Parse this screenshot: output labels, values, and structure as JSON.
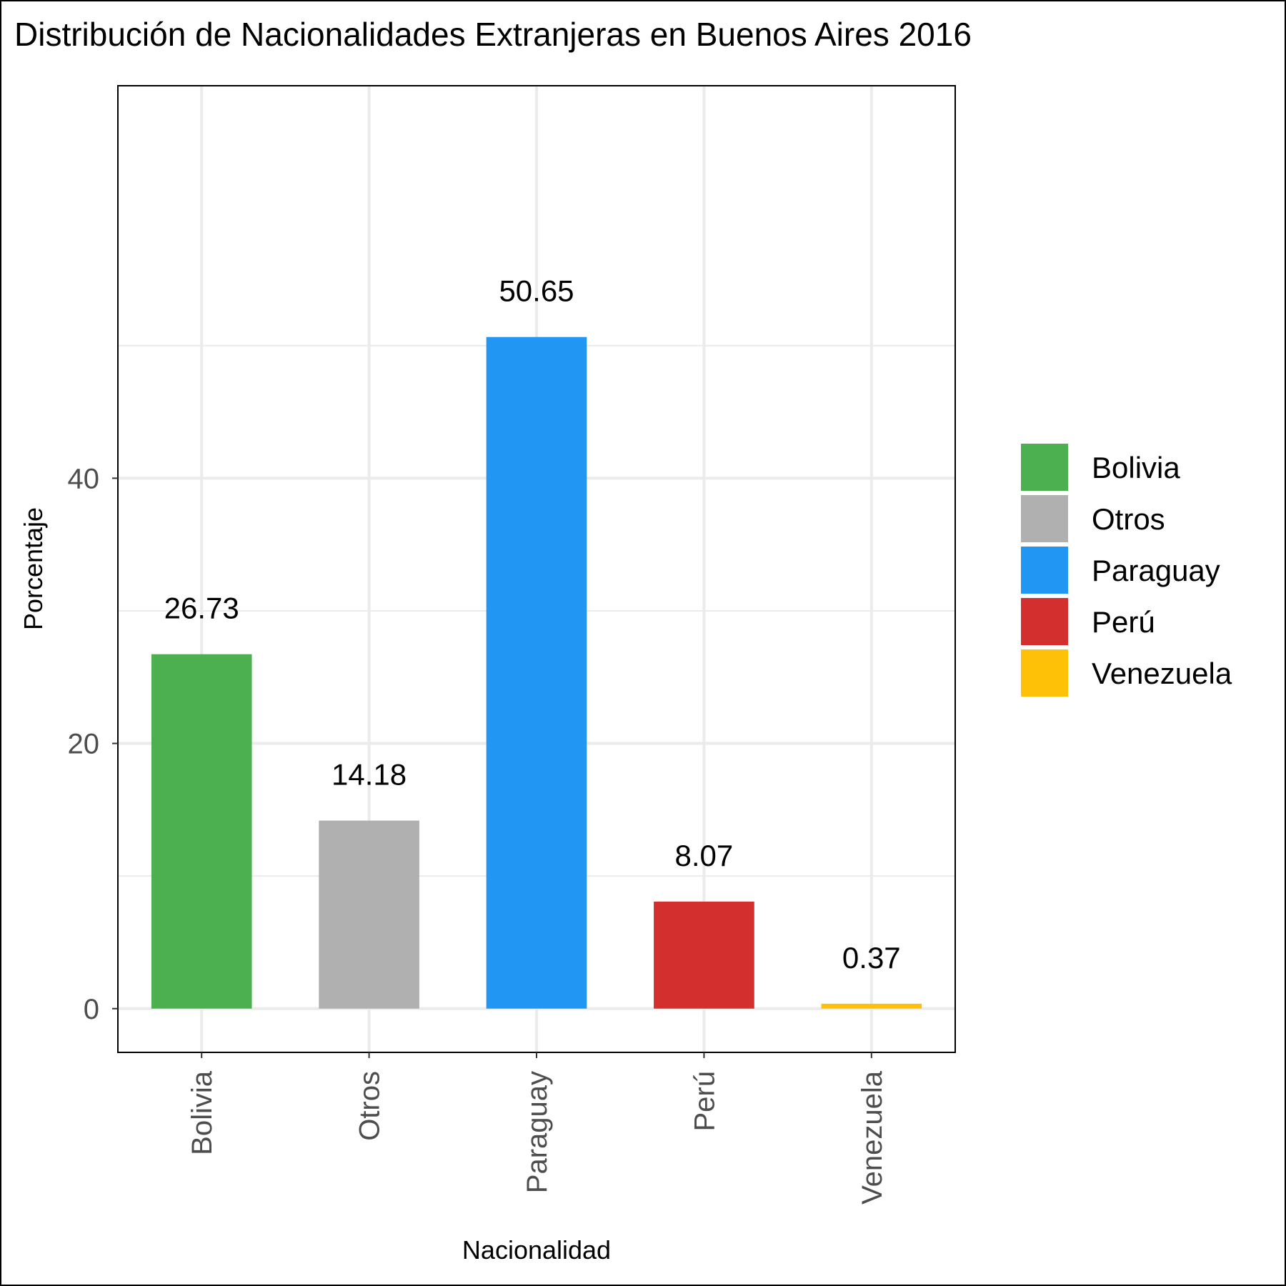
{
  "chart_data": {
    "type": "bar",
    "title": "Distribución de Nacionalidades Extranjeras en Buenos Aires 2016",
    "xlabel": "Nacionalidad",
    "ylabel": "Porcentaje",
    "categories": [
      "Bolivia",
      "Otros",
      "Paraguay",
      "Perú",
      "Venezuela"
    ],
    "values": [
      26.73,
      14.18,
      50.65,
      8.07,
      0.37
    ],
    "data_labels": [
      "26.73",
      "14.18",
      "50.65",
      "8.07",
      "0.37"
    ],
    "colors": [
      "#4caf50",
      "#b0b0b0",
      "#2196f3",
      "#d32f2f",
      "#ffc107"
    ],
    "ylim": [
      -3.3,
      69.6
    ],
    "yticks": [
      0,
      20,
      40
    ],
    "ytick_labels": [
      "0",
      "20",
      "40"
    ],
    "grid": true,
    "x_tick_rotation": "vertical",
    "legend": {
      "position": "right",
      "entries": [
        "Bolivia",
        "Otros",
        "Paraguay",
        "Perú",
        "Venezuela"
      ]
    }
  }
}
